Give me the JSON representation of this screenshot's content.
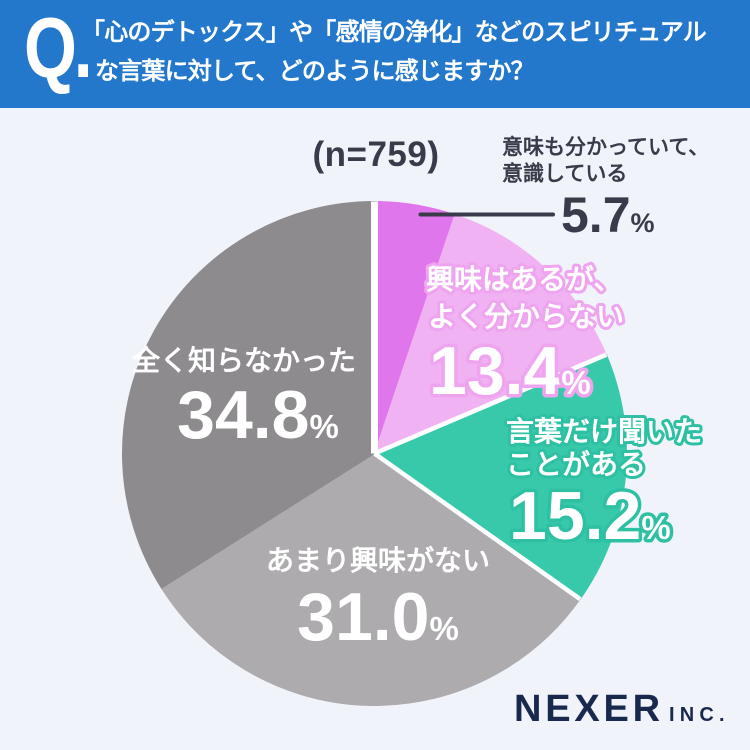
{
  "colors": {
    "bg": "#F0F4FA",
    "header_blue": "#2478CC",
    "header_text": "#FFFFFF",
    "dark_text": "#383B49",
    "separator": "#FFFFFF",
    "logo_navy": "#19294E"
  },
  "header": {
    "q_mark": "Q.",
    "title_lines": [
      "「心のデトックス」や「感情の浄化」などのスピリチュアル",
      "な言葉に対して、どのように感じますか？"
    ]
  },
  "sample_label": "(n=759)",
  "chart_data": {
    "type": "pie",
    "title": "「心のデトックス」や「感情の浄化」などのスピリチュアルな言葉に対して、どのように感じますか？",
    "sample_label": "(n=759)",
    "n": 759,
    "unit": "%",
    "start_angle_deg": 0,
    "direction": "clockwise",
    "segments": [
      {
        "label": "意味も分かっていて、意識している",
        "label_lines": [
          "意味も分かっていて、",
          "意識している"
        ],
        "value": 5.7,
        "display": "5.7",
        "color": "#DF76EC",
        "label_placement": "outside-callout",
        "label_color": "#383B49"
      },
      {
        "label": "興味はあるが、よく分からない",
        "label_lines": [
          "興味はあるが、",
          "よく分からない"
        ],
        "value": 13.4,
        "display": "13.4",
        "color": "#F0B2F3",
        "label_placement": "inside",
        "label_color": "#FFFFFF",
        "outline_color": "#EFA4EF"
      },
      {
        "label": "言葉だけ聞いたことがある",
        "label_lines": [
          "言葉だけ聞いた",
          "ことがある"
        ],
        "value": 15.2,
        "display": "15.2",
        "color": "#38C9AB",
        "label_placement": "inside",
        "label_color": "#FFFFFF",
        "outline_color": "#2EC0A2"
      },
      {
        "label": "あまり興味がない",
        "label_lines": [
          "あまり興味がない"
        ],
        "value": 31.0,
        "display": "31.0",
        "color": "#AEABAE",
        "label_placement": "inside",
        "label_color": "#FFFFFF"
      },
      {
        "label": "全く知らなかった",
        "label_lines": [
          "全く知らなかった"
        ],
        "value": 34.8,
        "display": "34.8",
        "color": "#8E8B8F",
        "label_placement": "inside",
        "label_color": "#FFFFFF"
      }
    ],
    "layout_hints": {
      "center": [
        374.5,
        453.5
      ],
      "radius": 252,
      "boundary_angles_deg": [
        0,
        18.6,
        66.9,
        125.3,
        237.7,
        360
      ],
      "separators": [
        {
          "boundary": 0,
          "width": 7
        },
        {
          "boundary": 2,
          "width": 4.5
        },
        {
          "boundary": 3,
          "width": 4.5
        }
      ]
    }
  },
  "footer": {
    "brand": "NEXER",
    "brand_suffix": "INC."
  }
}
